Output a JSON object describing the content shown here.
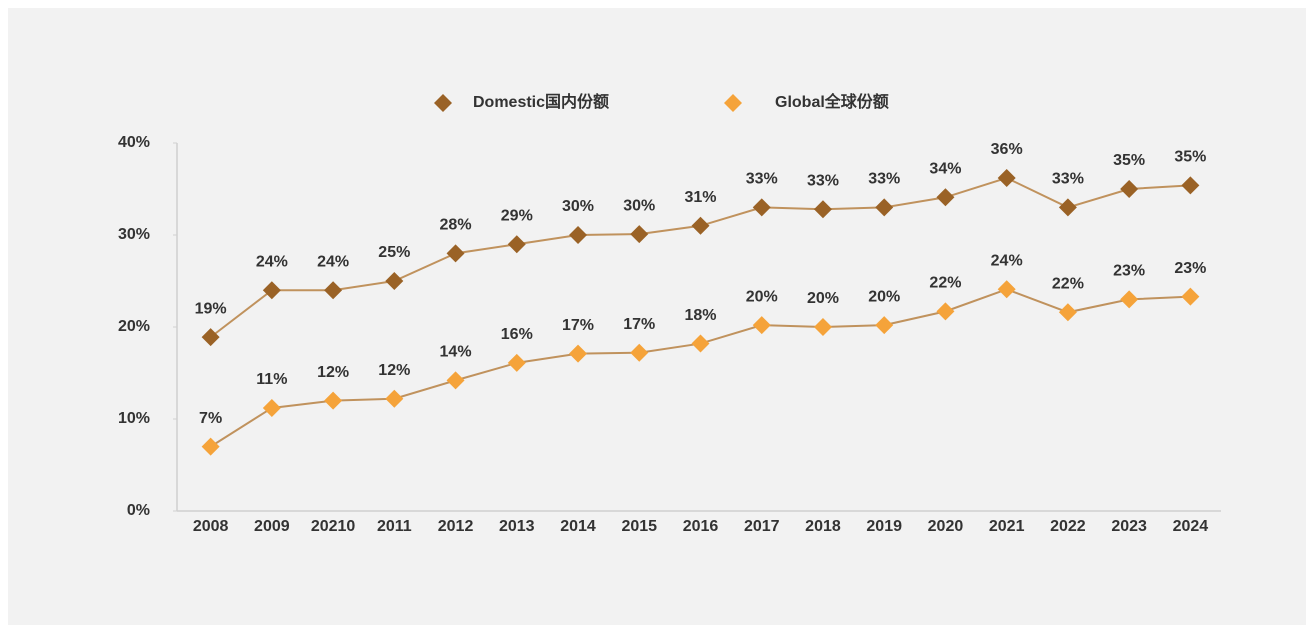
{
  "chart_data": {
    "type": "line",
    "categories": [
      "2008",
      "2009",
      "20210",
      "2011",
      "2012",
      "2013",
      "2014",
      "2015",
      "2016",
      "2017",
      "2018",
      "2019",
      "2020",
      "2021",
      "2022",
      "2023",
      "2024"
    ],
    "series": [
      {
        "name": "Domestic国内份额",
        "color": "#9a6226",
        "values": [
          18.9,
          24.0,
          24.0,
          25.0,
          28.0,
          29.0,
          30.0,
          30.1,
          31.0,
          33.0,
          32.8,
          33.0,
          34.1,
          36.2,
          33.0,
          35.0,
          35.4
        ],
        "value_labels": [
          "19%",
          "24%",
          "24%",
          "25%",
          "28%",
          "29%",
          "30%",
          "30%",
          "31%",
          "33%",
          "33%",
          "33%",
          "34%",
          "36%",
          "33%",
          "35%",
          "35%"
        ]
      },
      {
        "name": "Global全球份额",
        "color": "#f5a33a",
        "values": [
          7.0,
          11.2,
          12.0,
          12.2,
          14.2,
          16.1,
          17.1,
          17.2,
          18.2,
          20.2,
          20.0,
          20.2,
          21.7,
          24.1,
          21.6,
          23.0,
          23.3
        ],
        "value_labels": [
          "7%",
          "11%",
          "12%",
          "12%",
          "14%",
          "16%",
          "17%",
          "17%",
          "18%",
          "20%",
          "20%",
          "20%",
          "22%",
          "24%",
          "22%",
          "23%",
          "23%"
        ]
      }
    ],
    "line_color": "#c0925d",
    "ylim": [
      0,
      40
    ],
    "yticks": [
      {
        "value": 0,
        "label": "0%"
      },
      {
        "value": 10,
        "label": "10%"
      },
      {
        "value": 20,
        "label": "20%"
      },
      {
        "value": 30,
        "label": "30%"
      },
      {
        "value": 40,
        "label": "40%"
      }
    ],
    "legend": "top"
  }
}
